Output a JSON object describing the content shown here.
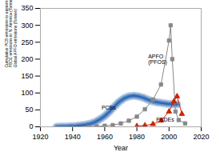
{
  "chart_data": {
    "type": "line",
    "xlabel": "Year",
    "ylabel": "Cumulative PCB emissions to eastern N. America (%)\nPBDE emissions in N. America (Tonnes)\nGlobal APFO emissions (Tonnes)",
    "xlim": [
      1920,
      2020
    ],
    "ylim": [
      0,
      350
    ],
    "xticks": [
      1920,
      1940,
      1960,
      1980,
      2000,
      2020
    ],
    "yticks": [
      0,
      50,
      100,
      150,
      200,
      250,
      300,
      350
    ],
    "series": [
      {
        "color": "#2060b0",
        "x": [
          1930,
          1933,
          1936,
          1939,
          1942,
          1945,
          1948,
          1951,
          1954,
          1957,
          1960,
          1963,
          1966,
          1969,
          1972,
          1975,
          1978,
          1981,
          1984,
          1987,
          1990,
          1993,
          1996,
          1999,
          2002,
          2005
        ],
        "values": [
          0,
          0.3,
          0.8,
          1.5,
          2.5,
          4,
          6,
          9,
          14,
          22,
          32,
          45,
          60,
          74,
          84,
          90,
          92,
          90,
          86,
          80,
          75,
          72,
          70,
          68,
          67,
          66
        ]
      },
      {
        "color": "#888888",
        "marker": "square",
        "x": [
          1950,
          1955,
          1960,
          1965,
          1970,
          1975,
          1980,
          1985,
          1990,
          1995,
          2000,
          2001,
          2002,
          2004,
          2006,
          2010
        ],
        "values": [
          0,
          1,
          3,
          5,
          10,
          18,
          30,
          52,
          80,
          125,
          255,
          300,
          200,
          45,
          20,
          10
        ]
      },
      {
        "color": "#cc2200",
        "marker": "triangle",
        "x": [
          1980,
          1985,
          1990,
          1995,
          2000,
          2003,
          2005,
          2008
        ],
        "values": [
          2,
          4,
          8,
          18,
          45,
          75,
          90,
          38
        ]
      }
    ],
    "annotations": [
      {
        "text": "PCBs",
        "x": 1958,
        "y": 52
      },
      {
        "text": "APFO\n(PFOS)",
        "x": 1987,
        "y": 185
      },
      {
        "text": "PBDEs",
        "x": 1992,
        "y": 15
      }
    ]
  }
}
